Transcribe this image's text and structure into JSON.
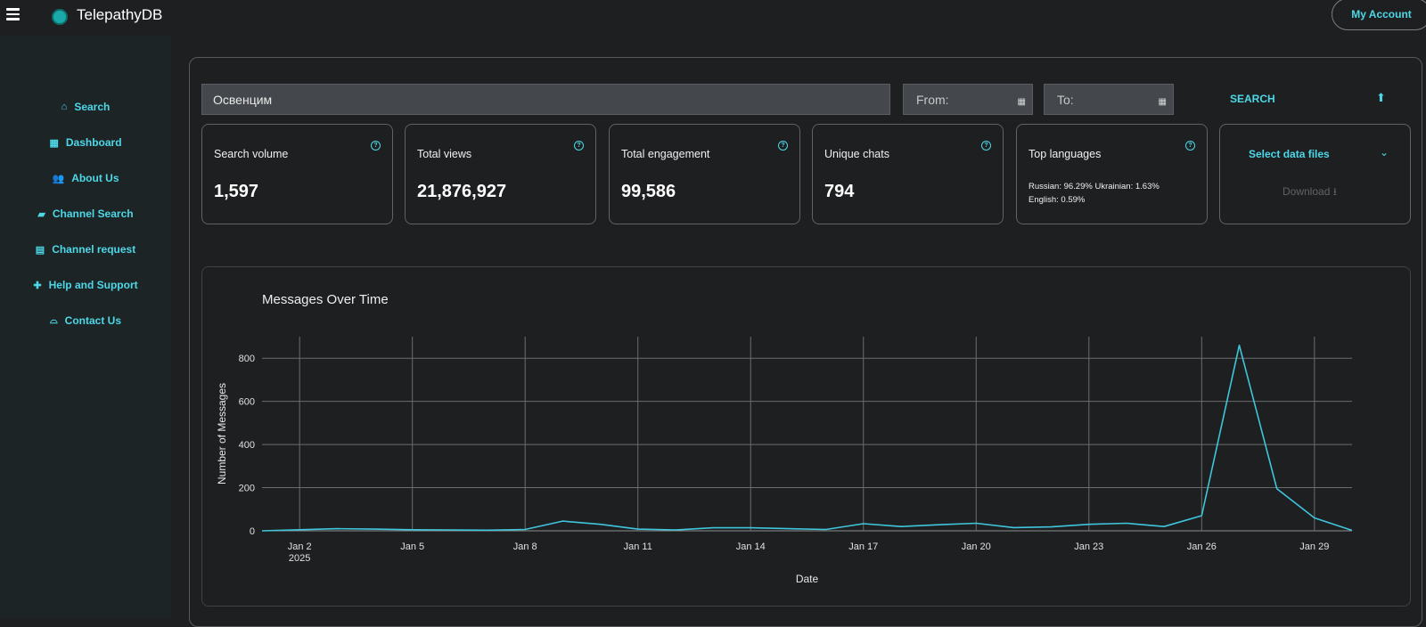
{
  "app": {
    "title": "TelepathyDB",
    "account_label": "My Account"
  },
  "sidebar": {
    "items": [
      {
        "label": "Search",
        "icon": "home-icon",
        "glyph": "⌂"
      },
      {
        "label": "Dashboard",
        "icon": "table-icon",
        "glyph": "▦"
      },
      {
        "label": "About Us",
        "icon": "users-icon",
        "glyph": "👥"
      },
      {
        "label": "Channel Search",
        "icon": "book-icon",
        "glyph": "▰"
      },
      {
        "label": "Channel request",
        "icon": "form-icon",
        "glyph": "▤"
      },
      {
        "label": "Help and Support",
        "icon": "medkit-icon",
        "glyph": "✚"
      },
      {
        "label": "Contact Us",
        "icon": "inbox-icon",
        "glyph": "⌓"
      }
    ]
  },
  "search": {
    "query": "Освенцим",
    "from_label": "From:",
    "to_label": "To:",
    "button_label": "SEARCH"
  },
  "stats": {
    "search_volume": {
      "label": "Search volume",
      "value": "1,597"
    },
    "total_views": {
      "label": "Total views",
      "value": "21,876,927"
    },
    "total_engagement": {
      "label": "Total engagement",
      "value": "99,586"
    },
    "unique_chats": {
      "label": "Unique chats",
      "value": "794"
    },
    "top_languages": {
      "label": "Top languages",
      "value": "Russian: 96.29% Ukrainian: 1.63% English: 0.59%"
    }
  },
  "files": {
    "select_label": "Select data files",
    "download_label": "Download"
  },
  "colors": {
    "accent": "#4dd8e8",
    "line": "#3fc6dc",
    "background": "#1e1f21",
    "sidebar": "#1c2426"
  },
  "chart_data": {
    "type": "line",
    "title": "Messages Over Time",
    "xlabel": "Date",
    "ylabel": "Number of Messages",
    "xlim": [
      "2025-01-01",
      "2025-01-30"
    ],
    "ylim": [
      0,
      900
    ],
    "grid": true,
    "x_ticks": [
      {
        "date": "2025-01-02",
        "label": "Jan 2",
        "sublabel": "2025"
      },
      {
        "date": "2025-01-05",
        "label": "Jan 5"
      },
      {
        "date": "2025-01-08",
        "label": "Jan 8"
      },
      {
        "date": "2025-01-11",
        "label": "Jan 11"
      },
      {
        "date": "2025-01-14",
        "label": "Jan 14"
      },
      {
        "date": "2025-01-17",
        "label": "Jan 17"
      },
      {
        "date": "2025-01-20",
        "label": "Jan 20"
      },
      {
        "date": "2025-01-23",
        "label": "Jan 23"
      },
      {
        "date": "2025-01-26",
        "label": "Jan 26"
      },
      {
        "date": "2025-01-29",
        "label": "Jan 29"
      }
    ],
    "y_ticks": [
      0,
      200,
      400,
      600,
      800
    ],
    "series": [
      {
        "x": [
          "2025-01-01",
          "2025-01-02",
          "2025-01-03",
          "2025-01-04",
          "2025-01-05",
          "2025-01-06",
          "2025-01-07",
          "2025-01-08",
          "2025-01-09",
          "2025-01-10",
          "2025-01-11",
          "2025-01-12",
          "2025-01-13",
          "2025-01-14",
          "2025-01-15",
          "2025-01-16",
          "2025-01-17",
          "2025-01-18",
          "2025-01-19",
          "2025-01-20",
          "2025-01-21",
          "2025-01-22",
          "2025-01-23",
          "2025-01-24",
          "2025-01-25",
          "2025-01-26",
          "2025-01-27",
          "2025-01-28",
          "2025-01-29",
          "2025-01-30"
        ],
        "y": [
          0,
          5,
          10,
          8,
          5,
          4,
          3,
          6,
          45,
          30,
          8,
          4,
          14,
          14,
          10,
          6,
          33,
          20,
          28,
          35,
          15,
          18,
          30,
          35,
          20,
          70,
          860,
          195,
          60,
          2
        ]
      }
    ]
  }
}
